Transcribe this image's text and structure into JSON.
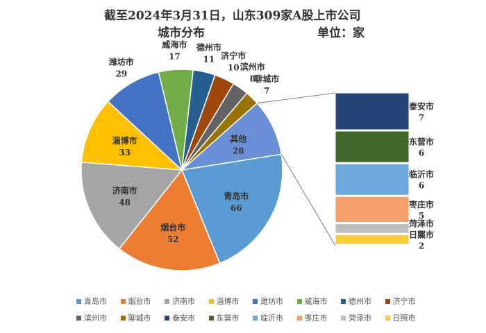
{
  "chart_data": {
    "type": "pie",
    "title": "截至2024年3月31日，山东309家A股上市公司",
    "subtitle_left": "城市分布",
    "subtitle_right": "单位：家",
    "slices": [
      {
        "label": "青岛市",
        "value": 66,
        "color": "#5b9bd5"
      },
      {
        "label": "烟台市",
        "value": 52,
        "color": "#ed7d31"
      },
      {
        "label": "济南市",
        "value": 48,
        "color": "#a5a5a5"
      },
      {
        "label": "淄博市",
        "value": 33,
        "color": "#ffc000"
      },
      {
        "label": "潍坊市",
        "value": 29,
        "color": "#4472c4"
      },
      {
        "label": "威海市",
        "value": 17,
        "color": "#70ad47"
      },
      {
        "label": "德州市",
        "value": 11,
        "color": "#255e91"
      },
      {
        "label": "济宁市",
        "value": 10,
        "color": "#9e480e"
      },
      {
        "label": "滨州市",
        "value": 8,
        "color": "#636363"
      },
      {
        "label": "聊城市",
        "value": 7,
        "color": "#997300"
      },
      {
        "label": "其他",
        "value": 28,
        "color": "#6b8fd6"
      }
    ],
    "other_breakdown": [
      {
        "label": "泰安市",
        "value": 7,
        "color": "#264478"
      },
      {
        "label": "东营市",
        "value": 6,
        "color": "#43682b"
      },
      {
        "label": "临沂市",
        "value": 6,
        "color": "#6fa8dc"
      },
      {
        "label": "枣庄市",
        "value": 5,
        "color": "#f4a06a"
      },
      {
        "label": "菏泽市",
        "value": 2,
        "color": "#bfbfbf"
      },
      {
        "label": "日照市",
        "value": 2,
        "color": "#ffcd33"
      }
    ],
    "legend": [
      "青岛市",
      "烟台市",
      "济南市",
      "淄博市",
      "潍坊市",
      "威海市",
      "德州市",
      "济宁市",
      "滨州市",
      "聊城市",
      "泰安市",
      "东营市",
      "临沂市",
      "枣庄市",
      "菏泽市",
      "日照市"
    ]
  }
}
